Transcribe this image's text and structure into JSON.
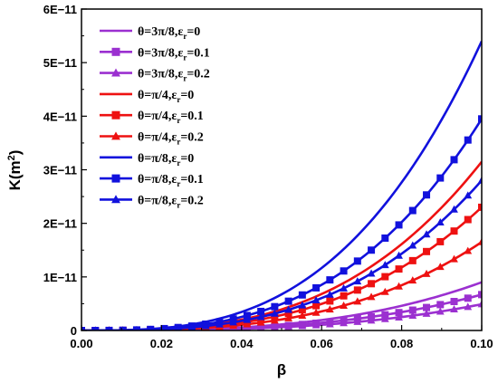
{
  "chart_data": {
    "type": "line",
    "title": "",
    "xlabel": "β",
    "ylabel": "K(m²)",
    "xlim": [
      0.0,
      0.1
    ],
    "ylim": [
      0,
      6e-11
    ],
    "grid": false,
    "legend_position": "top-left",
    "x_ticks": [
      {
        "value": 0.0,
        "label": "0.00"
      },
      {
        "value": 0.02,
        "label": "0.02"
      },
      {
        "value": 0.04,
        "label": "0.04"
      },
      {
        "value": 0.06,
        "label": "0.06"
      },
      {
        "value": 0.08,
        "label": "0.08"
      },
      {
        "value": 0.1,
        "label": "0.10"
      }
    ],
    "y_ticks": [
      {
        "value": 0,
        "label": "0"
      },
      {
        "value": 1e-11,
        "label": "1E−11"
      },
      {
        "value": 2e-11,
        "label": "2E−11"
      },
      {
        "value": 3e-11,
        "label": "3E−11"
      },
      {
        "value": 4e-11,
        "label": "4E−11"
      },
      {
        "value": 5e-11,
        "label": "5E−11"
      },
      {
        "value": 6e-11,
        "label": "6E−11"
      }
    ],
    "series": [
      {
        "label": "θ=3π/8,ε",
        "sub": "r",
        "value": "=0",
        "color": "#9b30d0",
        "marker": "none",
        "k_at_max": 9e-12
      },
      {
        "label": "θ=3π/8,ε",
        "sub": "r",
        "value": "=0.1",
        "color": "#9b30d0",
        "marker": "square",
        "k_at_max": 6.7e-12
      },
      {
        "label": "θ=3π/8,ε",
        "sub": "r",
        "value": "=0.2",
        "color": "#9b30d0",
        "marker": "triangle",
        "k_at_max": 4.9e-12
      },
      {
        "label": "θ=π/4,ε",
        "sub": "r",
        "value": "=0",
        "color": "#ee1111",
        "marker": "none",
        "k_at_max": 3.15e-11
      },
      {
        "label": "θ=π/4,ε",
        "sub": "r",
        "value": "=0.1",
        "color": "#ee1111",
        "marker": "square",
        "k_at_max": 2.3e-11
      },
      {
        "label": "θ=π/4,ε",
        "sub": "r",
        "value": "=0.2",
        "color": "#ee1111",
        "marker": "triangle",
        "k_at_max": 1.65e-11
      },
      {
        "label": "θ=π/8,ε",
        "sub": "r",
        "value": "=0",
        "color": "#1111dd",
        "marker": "none",
        "k_at_max": 5.4e-11
      },
      {
        "label": "θ=π/8,ε",
        "sub": "r",
        "value": "=0.1",
        "color": "#1111dd",
        "marker": "square",
        "k_at_max": 3.95e-11
      },
      {
        "label": "θ=π/8,ε",
        "sub": "r",
        "value": "=0.2",
        "color": "#1111dd",
        "marker": "triangle",
        "k_at_max": 2.8e-11
      }
    ]
  }
}
